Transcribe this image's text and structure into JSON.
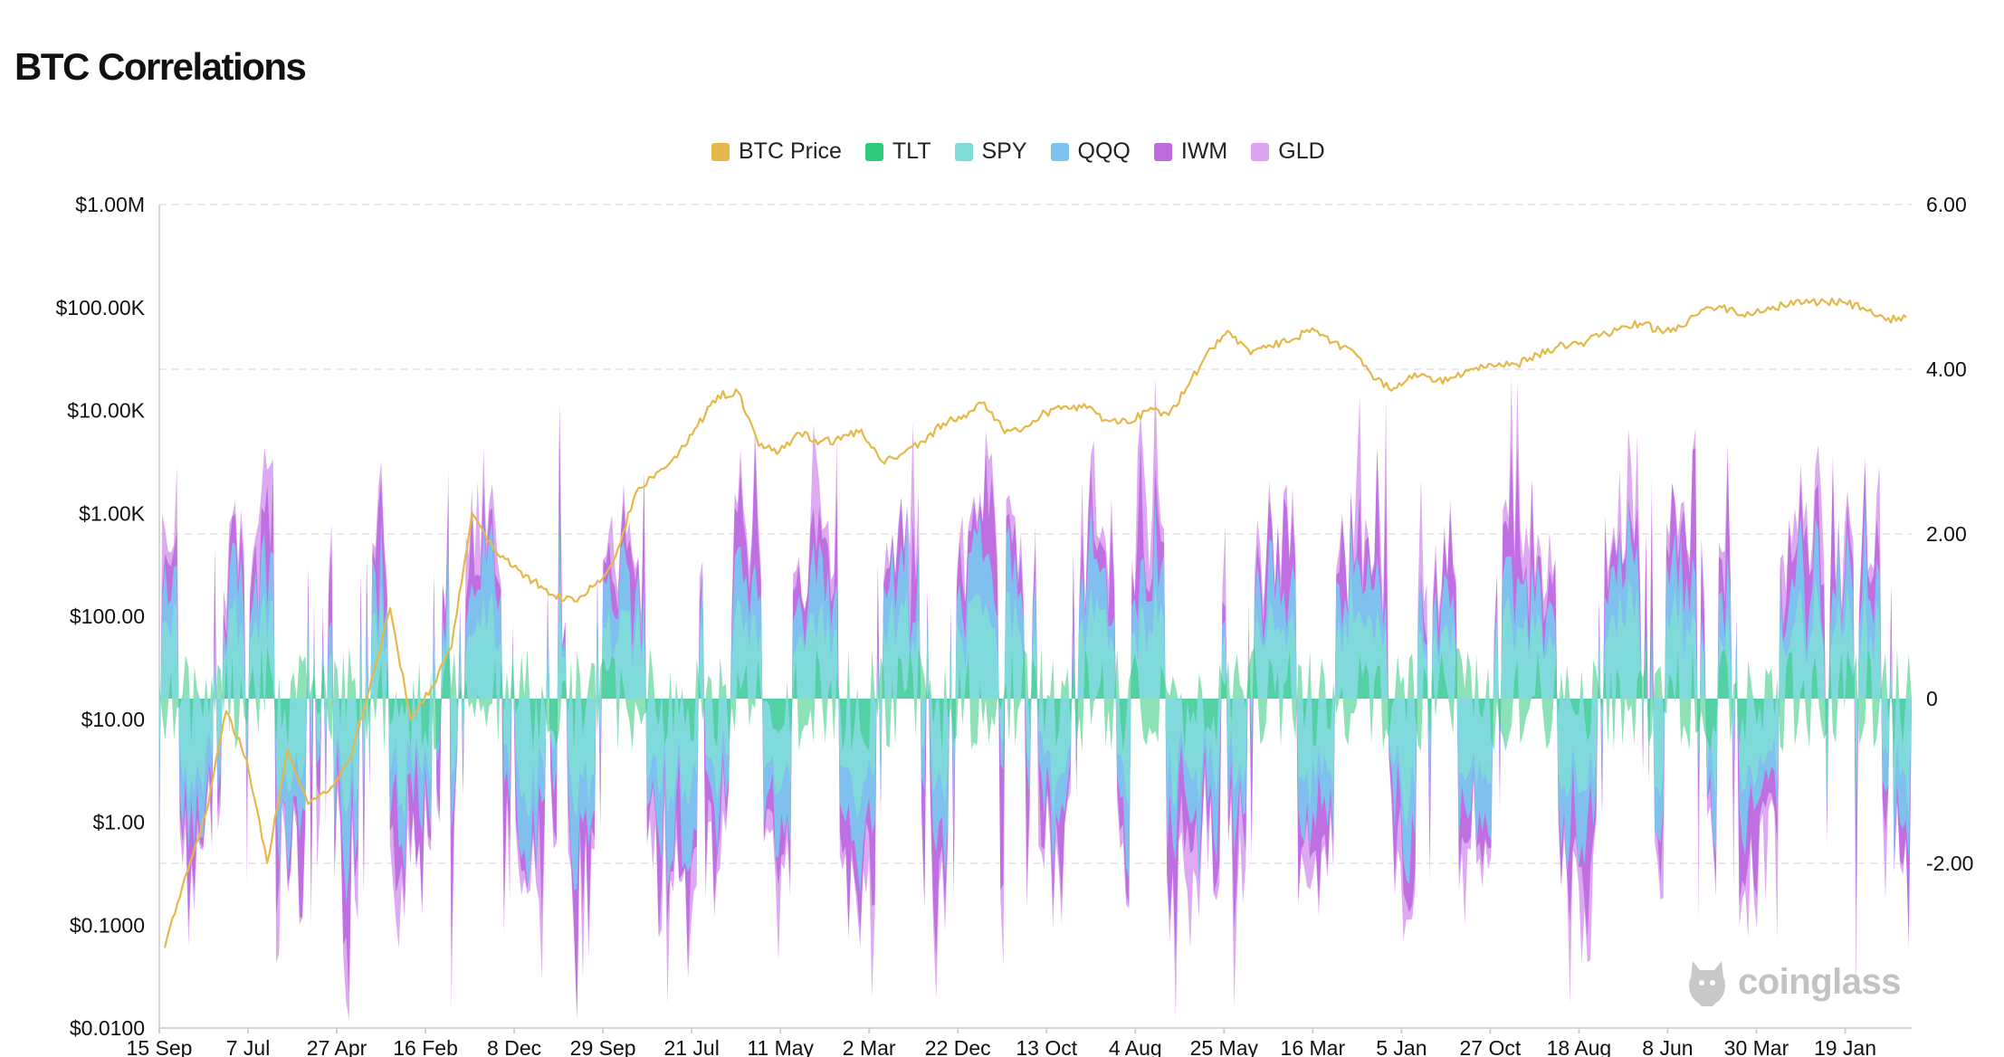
{
  "title": "BTC Correlations",
  "watermark": "coinglass",
  "colors": {
    "btc": "#e6b84b",
    "tlt": "#2fc97a",
    "spy": "#7fdad8",
    "qqq": "#7cc4ef",
    "iwm": "#be6be0",
    "gld": "#dba4ef"
  },
  "chart_data": {
    "type": "area",
    "title": "BTC Correlations",
    "legend_position": "top-center",
    "grid": true,
    "x_tick_labels": [
      "15 Sep",
      "7 Jul",
      "27 Apr",
      "16 Feb",
      "8 Dec",
      "29 Sep",
      "21 Jul",
      "11 May",
      "2 Mar",
      "22 Dec",
      "13 Oct",
      "4 Aug",
      "25 May",
      "16 Mar",
      "5 Jan",
      "27 Oct",
      "18 Aug",
      "8 Jun",
      "30 Mar",
      "19 Jan"
    ],
    "y_left": {
      "scale": "log",
      "range": [
        0.01,
        1000000
      ],
      "tick_labels": [
        "$1.00M",
        "$100.00K",
        "$10.00K",
        "$1.00K",
        "$100.00",
        "$10.00",
        "$1.00",
        "$0.1000",
        "$0.0100"
      ]
    },
    "y_right": {
      "scale": "linear",
      "range": [
        -4,
        6
      ],
      "tick_labels": [
        "6.00",
        "4.00",
        "2.00",
        "0",
        "-2.00"
      ]
    },
    "series": [
      {
        "name": "BTC Price",
        "axis": "left",
        "type": "line",
        "values": [
          0.06,
          0.3,
          1.2,
          12,
          4,
          0.4,
          5,
          1.5,
          2,
          4,
          20,
          120,
          10,
          20,
          50,
          1000,
          480,
          300,
          220,
          160,
          140,
          200,
          380,
          1600,
          2500,
          3500,
          7000,
          14000,
          15000,
          4500,
          4000,
          6000,
          5000,
          5200,
          6500,
          3200,
          3800,
          5000,
          7500,
          9000,
          12000,
          6000,
          7000,
          9500,
          11000,
          10500,
          8000,
          7500,
          10000,
          9000,
          18000,
          40000,
          57000,
          35000,
          42000,
          48000,
          63000,
          46000,
          38000,
          20000,
          16500,
          23000,
          19000,
          21000,
          26000,
          27000,
          28000,
          35000,
          42000,
          44000,
          52000,
          62000,
          70000,
          60000,
          65000,
          95000,
          100000,
          85000,
          90000,
          105000,
          110000,
          115000,
          112000,
          95000,
          75000,
          80000
        ]
      },
      {
        "name": "TLT",
        "axis": "right",
        "type": "area"
      },
      {
        "name": "SPY",
        "axis": "right",
        "type": "area"
      },
      {
        "name": "QQQ",
        "axis": "right",
        "type": "area"
      },
      {
        "name": "IWM",
        "axis": "right",
        "type": "area"
      },
      {
        "name": "GLD",
        "axis": "right",
        "type": "area"
      }
    ]
  }
}
